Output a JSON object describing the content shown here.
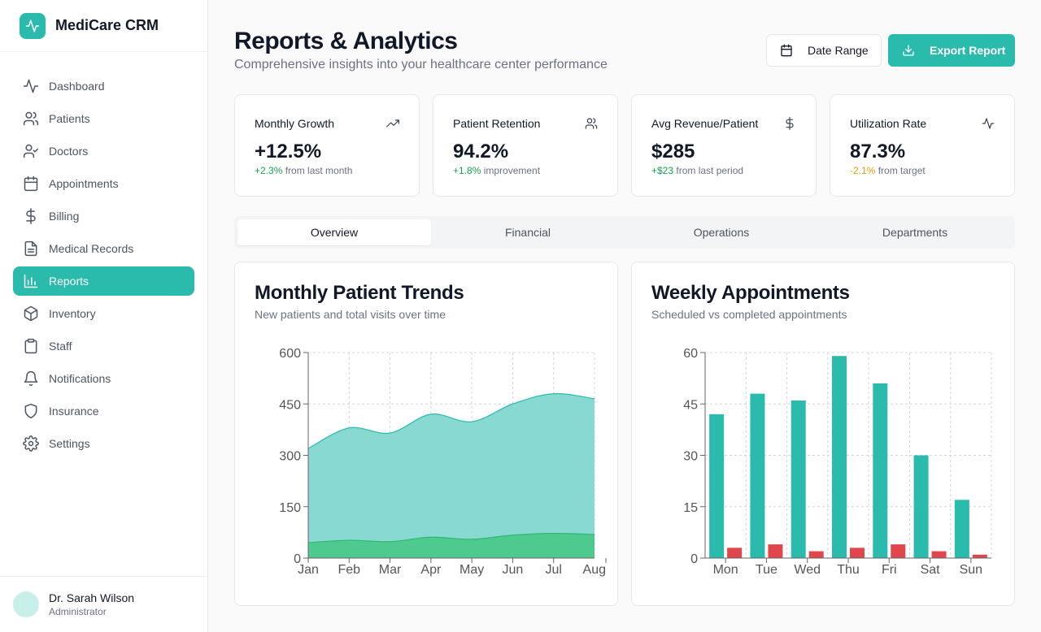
{
  "app": {
    "name": "MediCare CRM"
  },
  "sidebar": {
    "items": [
      {
        "label": "Dashboard",
        "icon": "activity-icon"
      },
      {
        "label": "Patients",
        "icon": "users-icon"
      },
      {
        "label": "Doctors",
        "icon": "user-check-icon"
      },
      {
        "label": "Appointments",
        "icon": "calendar-icon"
      },
      {
        "label": "Billing",
        "icon": "dollar-icon"
      },
      {
        "label": "Medical Records",
        "icon": "file-text-icon"
      },
      {
        "label": "Reports",
        "icon": "bar-chart-icon",
        "active": true
      },
      {
        "label": "Inventory",
        "icon": "package-icon"
      },
      {
        "label": "Staff",
        "icon": "clipboard-icon"
      },
      {
        "label": "Notifications",
        "icon": "bell-icon"
      },
      {
        "label": "Insurance",
        "icon": "shield-icon"
      },
      {
        "label": "Settings",
        "icon": "gear-icon"
      }
    ]
  },
  "user": {
    "name": "Dr. Sarah Wilson",
    "role": "Administrator"
  },
  "header": {
    "title": "Reports & Analytics",
    "subtitle": "Comprehensive insights into your healthcare center performance",
    "date_button": "Date Range",
    "export_button": "Export Report"
  },
  "kpis": [
    {
      "label": "Monthly Growth",
      "value": "+12.5%",
      "delta": "+2.3%",
      "delta_text": " from last month",
      "icon": "trending-up-icon",
      "tone": "positive"
    },
    {
      "label": "Patient Retention",
      "value": "94.2%",
      "delta": "+1.8%",
      "delta_text": " improvement",
      "icon": "users-icon",
      "tone": "positive"
    },
    {
      "label": "Avg Revenue/Patient",
      "value": "$285",
      "delta": "+$23",
      "delta_text": " from last period",
      "icon": "dollar-icon",
      "tone": "positive"
    },
    {
      "label": "Utilization Rate",
      "value": "87.3%",
      "delta": "-2.1%",
      "delta_text": " from target",
      "icon": "activity-icon",
      "tone": "negative"
    }
  ],
  "tabs": [
    {
      "label": "Overview",
      "active": true
    },
    {
      "label": "Financial"
    },
    {
      "label": "Operations"
    },
    {
      "label": "Departments"
    }
  ],
  "colors": {
    "accent": "#2bbbad",
    "green": "#4cc98a",
    "red": "#e0474c"
  },
  "chart_data": [
    {
      "type": "area",
      "title": "Monthly Patient Trends",
      "subtitle": "New patients and total visits over time",
      "categories": [
        "Jan",
        "Feb",
        "Mar",
        "Apr",
        "May",
        "Jun",
        "Jul",
        "Aug"
      ],
      "series": [
        {
          "values": [
            320,
            380,
            365,
            420,
            398,
            450,
            480,
            465
          ],
          "color": "#88d9d1"
        },
        {
          "values": [
            45,
            52,
            48,
            61,
            55,
            67,
            72,
            69
          ],
          "color": "#4cc98a"
        }
      ],
      "yticks": [
        0,
        150,
        300,
        450,
        600
      ],
      "ylim": [
        0,
        600
      ],
      "grid": true
    },
    {
      "type": "bar",
      "title": "Weekly Appointments",
      "subtitle": "Scheduled vs completed appointments",
      "categories": [
        "Mon",
        "Tue",
        "Wed",
        "Thu",
        "Fri",
        "Sat",
        "Sun"
      ],
      "series": [
        {
          "values": [
            42,
            48,
            46,
            59,
            51,
            30,
            17
          ],
          "color": "#2bbbad"
        },
        {
          "values": [
            3,
            4,
            2,
            3,
            4,
            2,
            1
          ],
          "color": "#e0474c"
        }
      ],
      "yticks": [
        0,
        15,
        30,
        45,
        60
      ],
      "ylim": [
        0,
        60
      ],
      "grid": true
    }
  ]
}
